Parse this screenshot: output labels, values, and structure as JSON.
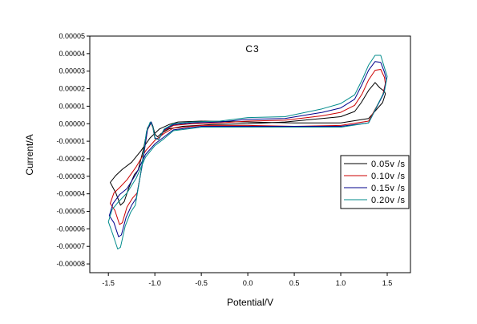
{
  "chart_data": {
    "type": "line",
    "title": "C3",
    "xlabel": "Potential/V",
    "ylabel": "Current/A",
    "xlim": [
      -1.7,
      1.75
    ],
    "ylim": [
      -8.5e-05,
      5e-05
    ],
    "x_ticks": [
      -1.5,
      -1.0,
      -0.5,
      0.0,
      0.5,
      1.0,
      1.5
    ],
    "x_tick_labels": [
      "-1.5",
      "-1.0",
      "-0.5",
      "0.0",
      "0.5",
      "1.0",
      "1.5"
    ],
    "y_ticks": [
      5e-05,
      4e-05,
      3e-05,
      2e-05,
      1e-05,
      0.0,
      -1e-05,
      -2e-05,
      -3e-05,
      -4e-05,
      -5e-05,
      -6e-05,
      -7e-05,
      -8e-05
    ],
    "y_tick_labels": [
      "0.00005",
      "0.00004",
      "0.00003",
      "0.00002",
      "0.00001",
      "0.00000",
      "-0.00001",
      "-0.00002",
      "-0.00003",
      "-0.00004",
      "-0.00005",
      "-0.00006",
      "-0.00007",
      "-0.00008"
    ],
    "grid": false,
    "legend_position": "right",
    "series": [
      {
        "name": "0.05v /s",
        "color": "#000000",
        "x": [
          -1.48,
          -1.42,
          -1.37,
          -1.33,
          -1.28,
          -1.22,
          -1.18,
          -1.12,
          -1.08,
          -1.04,
          -1.02,
          -1.0,
          -0.97,
          -0.93,
          -0.85,
          -0.7,
          -0.4,
          0.0,
          0.4,
          0.8,
          1.0,
          1.15,
          1.22,
          1.3,
          1.37,
          1.42,
          1.47,
          1.48,
          1.45,
          1.3,
          1.0,
          0.5,
          0.0,
          -0.5,
          -0.75,
          -0.85,
          -0.95,
          -1.05,
          -1.15,
          -1.25,
          -1.35,
          -1.42,
          -1.48
        ],
        "y": [
          -3.35e-05,
          -3.95e-05,
          -4.65e-05,
          -4.45e-05,
          -3.65e-05,
          -2.9e-05,
          -2.65e-05,
          -1.4e-05,
          -2.5e-06,
          1e-06,
          -1.5e-06,
          -6e-06,
          -7.5e-06,
          -5.5e-06,
          -3e-06,
          -1.5e-06,
          -5e-07,
          0.0,
          1e-06,
          3e-06,
          4e-06,
          7e-06,
          1.2e-05,
          1.9e-05,
          2.35e-05,
          2.05e-05,
          1.85e-05,
          1.7e-05,
          1.2e-05,
          3e-06,
          5e-07,
          5e-07,
          1e-06,
          1.5e-06,
          1e-06,
          -5e-07,
          -3e-06,
          -8e-06,
          -1.55e-05,
          -2.2e-05,
          -2.6e-05,
          -2.95e-05,
          -3.35e-05
        ]
      },
      {
        "name": "0.10v /s",
        "color": "#cc0000",
        "x": [
          -1.48,
          -1.43,
          -1.38,
          -1.35,
          -1.3,
          -1.24,
          -1.19,
          -1.13,
          -1.08,
          -1.04,
          -1.02,
          -1.0,
          -0.96,
          -0.9,
          -0.8,
          -0.6,
          -0.3,
          0.0,
          0.4,
          0.8,
          1.0,
          1.15,
          1.23,
          1.3,
          1.37,
          1.43,
          1.47,
          1.48,
          1.45,
          1.3,
          1.0,
          0.5,
          0.0,
          -0.5,
          -0.8,
          -0.9,
          -1.0,
          -1.1,
          -1.2,
          -1.3,
          -1.38,
          -1.44,
          -1.48
        ],
        "y": [
          -4.55e-05,
          -4.95e-05,
          -5.75e-05,
          -5.65e-05,
          -4.75e-05,
          -4.25e-05,
          -3.95e-05,
          -2.15e-05,
          -3.5e-06,
          5e-07,
          -2.5e-06,
          -8.5e-06,
          -9e-06,
          -4e-06,
          -1e-06,
          0.0,
          5e-07,
          1.5e-06,
          2e-06,
          4.5e-06,
          6.5e-06,
          1.05e-05,
          1.7e-05,
          2.5e-05,
          3.05e-05,
          3.1e-05,
          2.65e-05,
          2.3e-05,
          1.6e-05,
          1.5e-06,
          -1e-06,
          -1.5e-06,
          -1e-06,
          -1e-06,
          -2.5e-06,
          -5.5e-06,
          -9.5e-06,
          -1.55e-05,
          -2.45e-05,
          -3.2e-05,
          -3.65e-05,
          -3.95e-05,
          -4.55e-05
        ]
      },
      {
        "name": "0.15v /s",
        "color": "#00008b",
        "x": [
          -1.49,
          -1.44,
          -1.39,
          -1.36,
          -1.31,
          -1.25,
          -1.2,
          -1.14,
          -1.08,
          -1.04,
          -1.02,
          -1.0,
          -0.96,
          -0.9,
          -0.8,
          -0.6,
          -0.3,
          0.0,
          0.4,
          0.8,
          1.0,
          1.15,
          1.23,
          1.3,
          1.37,
          1.43,
          1.47,
          1.49,
          1.46,
          1.3,
          1.0,
          0.5,
          0.0,
          -0.5,
          -0.8,
          -0.9,
          -1.0,
          -1.1,
          -1.2,
          -1.3,
          -1.38,
          -1.45,
          -1.49
        ],
        "y": [
          -5.25e-05,
          -5.65e-05,
          -6.45e-05,
          -6.35e-05,
          -5.35e-05,
          -4.65e-05,
          -4.25e-05,
          -2.5e-05,
          -3.5e-06,
          1e-06,
          -2e-06,
          -8e-06,
          -9e-06,
          -3.5e-06,
          -5e-07,
          5e-07,
          1e-06,
          2.5e-06,
          3e-06,
          6.5e-06,
          9e-06,
          1.4e-05,
          2.25e-05,
          3.05e-05,
          3.55e-05,
          3.5e-05,
          2.95e-05,
          2.5e-05,
          1.7e-05,
          5e-07,
          -1.5e-06,
          -1.5e-06,
          -1.5e-06,
          -1.5e-06,
          -3.5e-06,
          -7.5e-06,
          -1.15e-05,
          -1.75e-05,
          -2.85e-05,
          -3.7e-05,
          -4.05e-05,
          -4.55e-05,
          -5.25e-05
        ]
      },
      {
        "name": "0.20v /s",
        "color": "#008b8b",
        "x": [
          -1.5,
          -1.45,
          -1.4,
          -1.37,
          -1.32,
          -1.26,
          -1.21,
          -1.15,
          -1.09,
          -1.05,
          -1.02,
          -1.0,
          -0.96,
          -0.9,
          -0.8,
          -0.6,
          -0.3,
          0.0,
          0.4,
          0.8,
          1.0,
          1.15,
          1.23,
          1.3,
          1.37,
          1.43,
          1.47,
          1.5,
          1.47,
          1.3,
          1.0,
          0.5,
          0.0,
          -0.5,
          -0.8,
          -0.9,
          -1.0,
          -1.1,
          -1.2,
          -1.3,
          -1.39,
          -1.46,
          -1.5
        ],
        "y": [
          -5.6e-05,
          -6.35e-05,
          -7.15e-05,
          -7.05e-05,
          -5.85e-05,
          -5.05e-05,
          -4.65e-05,
          -2.75e-05,
          -4.5e-06,
          1e-06,
          -2e-06,
          -8.5e-06,
          -9e-06,
          -3e-06,
          0.0,
          1e-06,
          1.5e-06,
          3.5e-06,
          4e-06,
          8.5e-06,
          1.15e-05,
          1.65e-05,
          2.5e-05,
          3.35e-05,
          3.9e-05,
          3.9e-05,
          3.2e-05,
          2.7e-05,
          1.85e-05,
          5e-07,
          -2e-06,
          -2e-06,
          -2e-06,
          -2e-06,
          -4e-06,
          -8.5e-06,
          -1.25e-05,
          -1.9e-05,
          -3.1e-05,
          -3.95e-05,
          -4.45e-05,
          -4.9e-05,
          -5.6e-05
        ]
      }
    ]
  }
}
